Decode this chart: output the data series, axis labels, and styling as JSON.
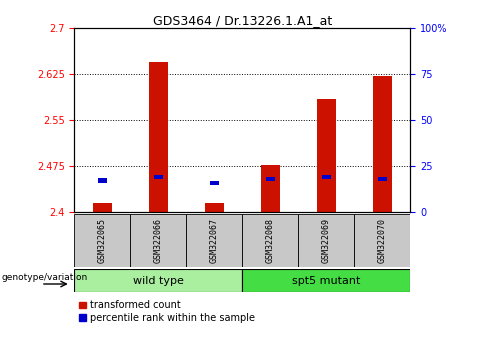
{
  "title": "GDS3464 / Dr.13226.1.A1_at",
  "samples": [
    "GSM322065",
    "GSM322066",
    "GSM322067",
    "GSM322068",
    "GSM322069",
    "GSM322070"
  ],
  "red_bar_values": [
    2.415,
    2.645,
    2.415,
    2.478,
    2.585,
    2.622
  ],
  "blue_bar_values": [
    2.452,
    2.458,
    2.448,
    2.455,
    2.458,
    2.455
  ],
  "y_min": 2.4,
  "y_max": 2.7,
  "y_ticks_left": [
    2.4,
    2.475,
    2.55,
    2.625,
    2.7
  ],
  "y_ticks_right": [
    0,
    25,
    50,
    75,
    100
  ],
  "bar_color_red": "#CC1100",
  "bar_color_blue": "#0000CC",
  "legend_red": "transformed count",
  "legend_blue": "percentile rank within the sample",
  "genotype_label": "genotype/variation",
  "wt_color": "#AAEEA0",
  "mut_color": "#44DD44",
  "gray_color": "#C8C8C8",
  "bar_width": 0.35
}
